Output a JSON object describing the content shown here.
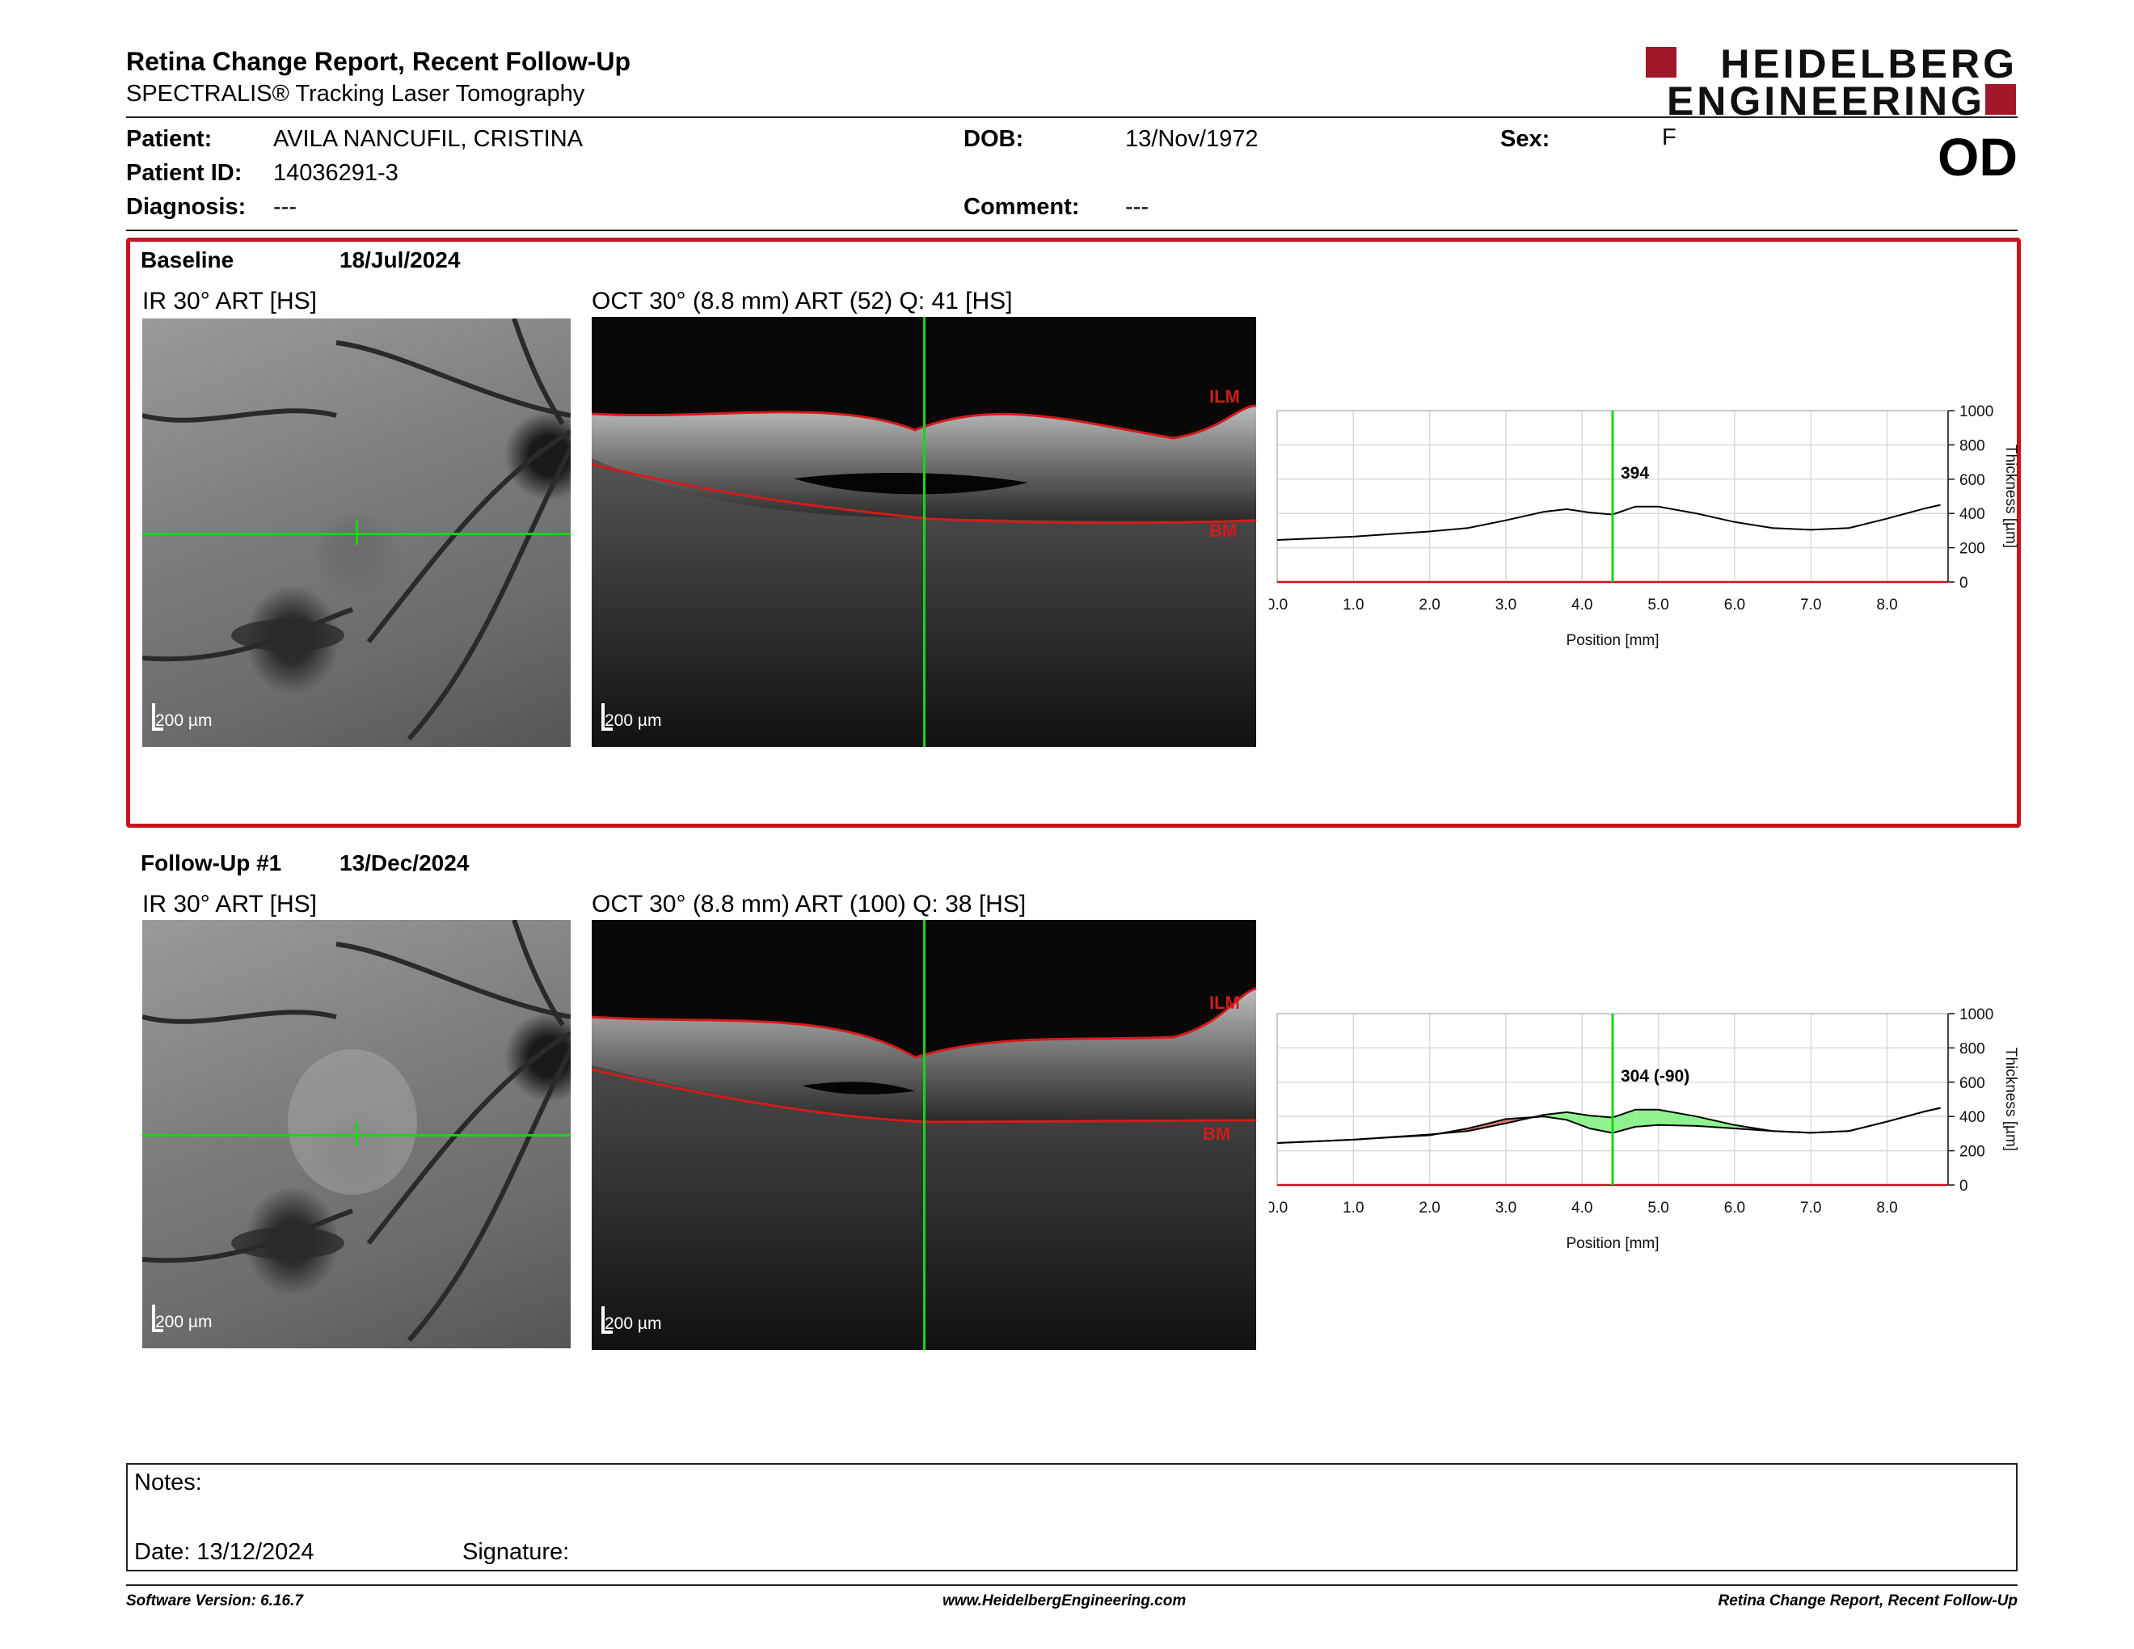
{
  "header": {
    "title": "Retina Change Report, Recent Follow-Up",
    "subtitle": "SPECTRALIS® Tracking Laser Tomography",
    "logo_line1": "HEIDELBERG",
    "logo_line2": "ENGINEERING",
    "eye": "OD"
  },
  "patient": {
    "patient_label": "Patient:",
    "patient_value": "AVILA NANCUFIL, CRISTINA",
    "id_label": "Patient ID:",
    "id_value": "14036291-3",
    "diagnosis_label": "Diagnosis:",
    "diagnosis_value": "---",
    "dob_label": "DOB:",
    "dob_value": "13/Nov/1972",
    "comment_label": "Comment:",
    "comment_value": "---",
    "sex_label": "Sex:",
    "sex_value": "F"
  },
  "baseline": {
    "label": "Baseline",
    "date": "18/Jul/2024",
    "ir_caption": "IR 30° ART [HS]",
    "oct_caption": "OCT 30° (8.8 mm) ART (52) Q: 41 [HS]",
    "scale_label": "200 µm",
    "ilm_label": "ILM",
    "bm_label": "BM"
  },
  "followup": {
    "label": "Follow-Up #1",
    "date": "13/Dec/2024",
    "ir_caption": "IR 30° ART [HS]",
    "oct_caption": "OCT 30° (8.8 mm) ART (100) Q: 38 [HS]",
    "scale_label": "200 µm",
    "ilm_label": "ILM",
    "bm_label": "BM"
  },
  "chart_data": [
    {
      "type": "line",
      "xlabel": "Position [mm]",
      "ylabel": "Thickness [µm]",
      "xlim": [
        0,
        8.8
      ],
      "ylim": [
        0,
        1000
      ],
      "xticks": [
        "0.0",
        "1.0",
        "2.0",
        "3.0",
        "4.0",
        "5.0",
        "6.0",
        "7.0",
        "8.0"
      ],
      "yticks": [
        "0",
        "200",
        "400",
        "600",
        "800",
        "1000"
      ],
      "cursor_x": 4.4,
      "cursor_label": "394",
      "series": [
        {
          "x": [
            0,
            0.5,
            1,
            1.5,
            2,
            2.5,
            3,
            3.5,
            3.8,
            4.1,
            4.4,
            4.7,
            5.0,
            5.5,
            6.0,
            6.5,
            7.0,
            7.5,
            8.0,
            8.5,
            8.7
          ],
          "y": [
            245,
            255,
            265,
            280,
            295,
            315,
            360,
            410,
            425,
            405,
            394,
            440,
            440,
            400,
            350,
            315,
            305,
            315,
            370,
            430,
            450
          ]
        }
      ],
      "colors": {
        "line": "#000000",
        "cursor": "#19d419"
      }
    },
    {
      "type": "line",
      "xlabel": "Position [mm]",
      "ylabel": "Thickness [µm]",
      "xlim": [
        0,
        8.8
      ],
      "ylim": [
        0,
        1000
      ],
      "xticks": [
        "0.0",
        "1.0",
        "2.0",
        "3.0",
        "4.0",
        "5.0",
        "6.0",
        "7.0",
        "8.0"
      ],
      "yticks": [
        "0",
        "200",
        "400",
        "600",
        "800",
        "1000"
      ],
      "cursor_x": 4.4,
      "cursor_label": "304 (-90)",
      "series": [
        {
          "x": [
            0,
            0.5,
            1,
            1.5,
            2,
            2.5,
            3,
            3.5,
            3.8,
            4.1,
            4.4,
            4.7,
            5.0,
            5.5,
            6.0,
            6.5,
            7.0,
            7.5,
            8.0,
            8.5,
            8.7
          ],
          "y": [
            245,
            255,
            265,
            280,
            295,
            315,
            360,
            410,
            425,
            405,
            394,
            440,
            440,
            400,
            350,
            315,
            305,
            315,
            370,
            430,
            450
          ]
        },
        {
          "x": [
            0,
            0.5,
            1,
            1.5,
            2,
            2.5,
            3,
            3.5,
            3.8,
            4.1,
            4.4,
            4.7,
            5.0,
            5.5,
            6.0,
            6.5,
            7.0,
            7.5,
            8.0,
            8.5,
            8.7
          ],
          "y": [
            245,
            255,
            265,
            278,
            290,
            330,
            385,
            400,
            380,
            330,
            304,
            340,
            350,
            345,
            330,
            315,
            305,
            315,
            370,
            430,
            450
          ]
        }
      ],
      "colors": {
        "baseline": "#000000",
        "followup": "#000000",
        "decrease": "#8ff28f",
        "increase": "#d97777",
        "cursor": "#19d419"
      }
    }
  ],
  "notes": {
    "notes_label": "Notes:",
    "date_label": "Date: 13/12/2024",
    "signature_label": "Signature:"
  },
  "footer": {
    "left": "Software Version: 6.16.7",
    "center": "www.HeidelbergEngineering.com",
    "right": "Retina Change Report, Recent Follow-Up"
  }
}
